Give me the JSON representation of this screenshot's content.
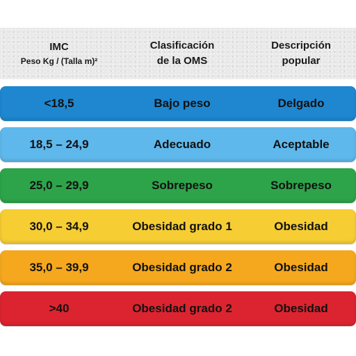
{
  "header": {
    "col1_title": "IMC",
    "col1_subtitle": "Peso Kg / (Talla m)²",
    "col2_line1": "Clasificación",
    "col2_line2": "de la OMS",
    "col3_line1": "Descripción",
    "col3_line2": "popular"
  },
  "rows": [
    {
      "range": "<18,5",
      "classification": "Bajo peso",
      "description": "Delgado",
      "color": "#1f87d0"
    },
    {
      "range": "18,5 – 24,9",
      "classification": "Adecuado",
      "description": "Aceptable",
      "color": "#5fb8ec"
    },
    {
      "range": "25,0 – 29,9",
      "classification": "Sobrepeso",
      "description": "Sobrepeso",
      "color": "#2ea44a"
    },
    {
      "range": "30,0 – 34,9",
      "classification": "Obesidad grado 1",
      "description": "Obesidad",
      "color": "#f6cd33"
    },
    {
      "range": "35,0 – 39,9",
      "classification": "Obesidad grado 2",
      "description": "Obesidad",
      "color": "#f5a81e"
    },
    {
      "range": ">40",
      "classification": "Obesidad grado 2",
      "description": "Obesidad",
      "color": "#dc2430"
    }
  ]
}
